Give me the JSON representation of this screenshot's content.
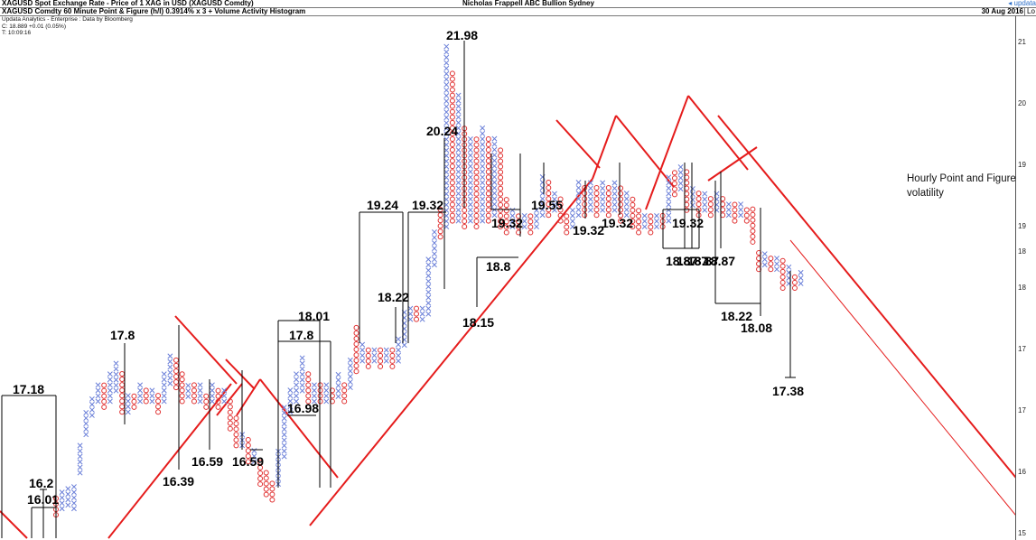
{
  "header": {
    "top_left": "XAGUSD Spot Exchange Rate - Price of 1 XAG in USD (XAGUSD Comdty)",
    "top_center": "Nicholas Frappell ABC Bullion Sydney",
    "top_right_logo": "updata",
    "chart_title": "XAGUSD Comdty 60 Minute Point & Figure (h/l) 0.3914% x 3 + Volume Activity Histogram",
    "date": "30 Aug 2016",
    "axis_mode": "Lo"
  },
  "info": {
    "line1": "Updata Analytics - Enterprise : Data by Bloomberg",
    "line2": "C: 18.889 +0.01 (0.05%)",
    "line3": "T: 10:09:16"
  },
  "note": {
    "line1": "Hourly Point and Figure, c",
    "line2": "volatility"
  },
  "axis_ticks": [
    "21",
    "20",
    "19",
    "19",
    "18",
    "18",
    "17",
    "17",
    "16",
    "15"
  ],
  "chart_data": {
    "type": "point-and-figure",
    "instrument": "XAGUSD Comdty",
    "box_size_pct": 0.3914,
    "reversal": 3,
    "colors": {
      "x": "#6a7fd8",
      "o": "#e03030",
      "trend": "#e51c1c",
      "measure": "#000000"
    },
    "columns": [
      {
        "type": "O",
        "low": 15.72,
        "high": 15.89
      },
      {
        "type": "X",
        "low": 15.79,
        "high": 15.97
      },
      {
        "type": "X",
        "low": 15.83,
        "high": 16.01
      },
      {
        "type": "X",
        "low": 15.79,
        "high": 16.04
      },
      {
        "type": "X",
        "low": 16.2,
        "high": 16.52
      },
      {
        "type": "X",
        "low": 16.65,
        "high": 16.92
      },
      {
        "type": "X",
        "low": 16.88,
        "high": 17.05
      },
      {
        "type": "X",
        "low": 17.05,
        "high": 17.27
      },
      {
        "type": "O",
        "low": 16.98,
        "high": 17.22
      },
      {
        "type": "X",
        "low": 17.05,
        "high": 17.38
      },
      {
        "type": "X",
        "low": 17.18,
        "high": 17.55
      },
      {
        "type": "O",
        "low": 16.92,
        "high": 17.42
      },
      {
        "type": "X",
        "low": 16.92,
        "high": 17.11
      },
      {
        "type": "O",
        "low": 16.98,
        "high": 17.11
      },
      {
        "type": "X",
        "low": 17.05,
        "high": 17.22
      },
      {
        "type": "O",
        "low": 17.05,
        "high": 17.18
      },
      {
        "type": "X",
        "low": 17.05,
        "high": 17.18
      },
      {
        "type": "O",
        "low": 16.92,
        "high": 17.11
      },
      {
        "type": "X",
        "low": 17.05,
        "high": 17.38
      },
      {
        "type": "X",
        "low": 17.27,
        "high": 17.61
      },
      {
        "type": "O",
        "low": 17.22,
        "high": 17.55
      },
      {
        "type": "O",
        "low": 17.05,
        "high": 17.38
      },
      {
        "type": "X",
        "low": 17.11,
        "high": 17.22
      },
      {
        "type": "O",
        "low": 17.05,
        "high": 17.22
      },
      {
        "type": "X",
        "low": 17.05,
        "high": 17.22
      },
      {
        "type": "O",
        "low": 16.98,
        "high": 17.11
      },
      {
        "type": "X",
        "low": 17.05,
        "high": 17.22
      },
      {
        "type": "O",
        "low": 16.98,
        "high": 17.18
      },
      {
        "type": "X",
        "low": 17.05,
        "high": 17.18
      },
      {
        "type": "O",
        "low": 16.72,
        "high": 17.05
      },
      {
        "type": "O",
        "low": 16.52,
        "high": 16.85
      },
      {
        "type": "X",
        "low": 16.52,
        "high": 16.65
      },
      {
        "type": "O",
        "low": 16.33,
        "high": 16.58
      },
      {
        "type": "X",
        "low": 16.33,
        "high": 16.46
      },
      {
        "type": "O",
        "low": 16.07,
        "high": 16.33
      },
      {
        "type": "O",
        "low": 15.95,
        "high": 16.2
      },
      {
        "type": "O",
        "low": 15.89,
        "high": 16.07
      },
      {
        "type": "X",
        "low": 16.07,
        "high": 16.46
      },
      {
        "type": "X",
        "low": 16.39,
        "high": 16.98
      },
      {
        "type": "X",
        "low": 16.92,
        "high": 17.18
      },
      {
        "type": "X",
        "low": 17.05,
        "high": 17.38
      },
      {
        "type": "X",
        "low": 17.18,
        "high": 17.61
      },
      {
        "type": "O",
        "low": 17.05,
        "high": 17.42
      },
      {
        "type": "X",
        "low": 17.05,
        "high": 17.27
      },
      {
        "type": "O",
        "low": 17.05,
        "high": 17.22
      },
      {
        "type": "X",
        "low": 17.05,
        "high": 17.22
      },
      {
        "type": "O",
        "low": 17.05,
        "high": 17.18
      },
      {
        "type": "X",
        "low": 17.11,
        "high": 17.38
      },
      {
        "type": "O",
        "low": 17.05,
        "high": 17.27
      },
      {
        "type": "X",
        "low": 17.22,
        "high": 17.55
      },
      {
        "type": "O",
        "low": 17.42,
        "high": 17.95
      },
      {
        "type": "X",
        "low": 17.55,
        "high": 17.75
      },
      {
        "type": "O",
        "low": 17.48,
        "high": 17.68
      },
      {
        "type": "X",
        "low": 17.55,
        "high": 17.68
      },
      {
        "type": "O",
        "low": 17.48,
        "high": 17.68
      },
      {
        "type": "X",
        "low": 17.55,
        "high": 17.68
      },
      {
        "type": "O",
        "low": 17.48,
        "high": 17.68
      },
      {
        "type": "X",
        "low": 17.55,
        "high": 17.8
      },
      {
        "type": "X",
        "low": 17.75,
        "high": 18.15
      },
      {
        "type": "X",
        "low": 18.08,
        "high": 18.22
      },
      {
        "type": "O",
        "low": 18.08,
        "high": 18.22
      },
      {
        "type": "X",
        "low": 18.08,
        "high": 18.22
      },
      {
        "type": "X",
        "low": 18.15,
        "high": 18.87
      },
      {
        "type": "X",
        "low": 18.8,
        "high": 19.24
      },
      {
        "type": "O",
        "low": 19.18,
        "high": 19.55
      },
      {
        "type": "X",
        "low": 19.32,
        "high": 21.98
      },
      {
        "type": "O",
        "low": 19.4,
        "high": 21.58
      },
      {
        "type": "X",
        "low": 19.4,
        "high": 21.2
      },
      {
        "type": "O",
        "low": 19.32,
        "high": 20.71
      },
      {
        "type": "X",
        "low": 19.4,
        "high": 20.59
      },
      {
        "type": "O",
        "low": 19.32,
        "high": 20.59
      },
      {
        "type": "X",
        "low": 19.4,
        "high": 20.71
      },
      {
        "type": "O",
        "low": 19.4,
        "high": 20.59
      },
      {
        "type": "X",
        "low": 19.48,
        "high": 20.59
      },
      {
        "type": "O",
        "low": 19.32,
        "high": 20.44
      },
      {
        "type": "O",
        "low": 19.24,
        "high": 19.69
      },
      {
        "type": "X",
        "low": 19.32,
        "high": 19.55
      },
      {
        "type": "O",
        "low": 19.24,
        "high": 19.48
      },
      {
        "type": "X",
        "low": 19.32,
        "high": 19.48
      },
      {
        "type": "O",
        "low": 19.24,
        "high": 19.48
      },
      {
        "type": "X",
        "low": 19.32,
        "high": 19.55
      },
      {
        "type": "X",
        "low": 19.48,
        "high": 20.04
      },
      {
        "type": "O",
        "low": 19.48,
        "high": 19.92
      },
      {
        "type": "X",
        "low": 19.55,
        "high": 19.77
      },
      {
        "type": "O",
        "low": 19.4,
        "high": 19.69
      },
      {
        "type": "O",
        "low": 19.24,
        "high": 19.48
      },
      {
        "type": "X",
        "low": 19.32,
        "high": 19.55
      },
      {
        "type": "X",
        "low": 19.48,
        "high": 19.92
      },
      {
        "type": "O",
        "low": 19.48,
        "high": 19.85
      },
      {
        "type": "X",
        "low": 19.55,
        "high": 19.92
      },
      {
        "type": "O",
        "low": 19.48,
        "high": 19.85
      },
      {
        "type": "X",
        "low": 19.55,
        "high": 19.92
      },
      {
        "type": "O",
        "low": 19.48,
        "high": 19.85
      },
      {
        "type": "X",
        "low": 19.55,
        "high": 19.92
      },
      {
        "type": "O",
        "low": 19.4,
        "high": 19.85
      },
      {
        "type": "X",
        "low": 19.48,
        "high": 19.77
      },
      {
        "type": "O",
        "low": 19.32,
        "high": 19.69
      },
      {
        "type": "O",
        "low": 19.24,
        "high": 19.55
      },
      {
        "type": "X",
        "low": 19.32,
        "high": 19.48
      },
      {
        "type": "O",
        "low": 19.24,
        "high": 19.48
      },
      {
        "type": "X",
        "low": 19.32,
        "high": 19.48
      },
      {
        "type": "O",
        "low": 19.32,
        "high": 19.48
      },
      {
        "type": "X",
        "low": 19.4,
        "high": 20.04
      },
      {
        "type": "O",
        "low": 19.77,
        "high": 20.11
      },
      {
        "type": "X",
        "low": 19.85,
        "high": 20.19
      },
      {
        "type": "O",
        "low": 19.55,
        "high": 20.11
      },
      {
        "type": "X",
        "low": 19.62,
        "high": 19.85
      },
      {
        "type": "O",
        "low": 19.48,
        "high": 19.77
      },
      {
        "type": "X",
        "low": 19.55,
        "high": 19.77
      },
      {
        "type": "O",
        "low": 19.48,
        "high": 19.69
      },
      {
        "type": "X",
        "low": 19.55,
        "high": 19.77
      },
      {
        "type": "O",
        "low": 19.48,
        "high": 19.69
      },
      {
        "type": "X",
        "low": 19.48,
        "high": 19.62
      },
      {
        "type": "O",
        "low": 19.4,
        "high": 19.62
      },
      {
        "type": "X",
        "low": 19.48,
        "high": 19.62
      },
      {
        "type": "O",
        "low": 19.4,
        "high": 19.55
      },
      {
        "type": "O",
        "low": 19.11,
        "high": 19.55
      },
      {
        "type": "O",
        "low": 18.74,
        "high": 18.99
      },
      {
        "type": "X",
        "low": 18.8,
        "high": 18.93
      },
      {
        "type": "O",
        "low": 18.74,
        "high": 18.87
      },
      {
        "type": "X",
        "low": 18.74,
        "high": 18.87
      },
      {
        "type": "O",
        "low": 18.49,
        "high": 18.87
      },
      {
        "type": "X",
        "low": 18.55,
        "high": 18.74
      },
      {
        "type": "O",
        "low": 18.49,
        "high": 18.67
      },
      {
        "type": "X",
        "low": 18.55,
        "high": 18.67
      }
    ],
    "annotations": [
      "21.98",
      "20.24",
      "19.32",
      "19.32",
      "19.32",
      "19.55",
      "19.24",
      "19.32",
      "19.32",
      "18.8",
      "18.87",
      "18.87",
      "18.87",
      "18.87",
      "18.22",
      "18.22",
      "18.08",
      "18.15",
      "18.01",
      "17.8",
      "17.8",
      "17.18",
      "17.38",
      "16.98",
      "16.59",
      "16.59",
      "16.39",
      "16.2",
      "16.01"
    ],
    "ylim": [
      15.6,
      22.0
    ]
  }
}
